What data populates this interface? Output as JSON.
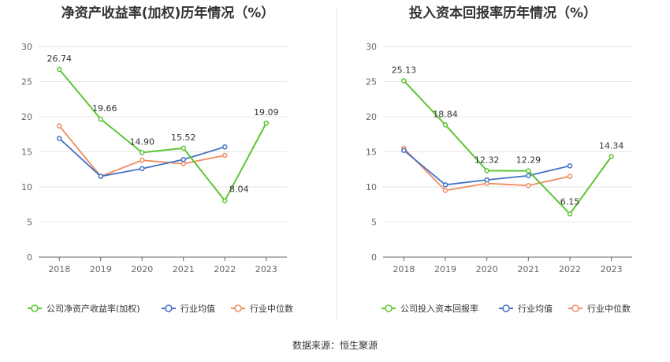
{
  "source_label": "数据来源：恒生聚源",
  "colors": {
    "company": "#5cc534",
    "avg": "#4472c4",
    "median": "#ef8c5f",
    "grid": "#e6e6e6",
    "axis": "#666666",
    "divider": "#e8e8e8"
  },
  "chart_data": [
    {
      "type": "line",
      "title": "净资产收益率(加权)历年情况（%）",
      "categories": [
        "2018",
        "2019",
        "2020",
        "2021",
        "2022",
        "2023"
      ],
      "ylim": [
        0,
        30
      ],
      "yticks": [
        0,
        5,
        10,
        15,
        20,
        25,
        30
      ],
      "grid": true,
      "legend_position": "bottom",
      "series": [
        {
          "name": "公司净资产收益率(加权)",
          "role": "company",
          "values": [
            26.74,
            19.66,
            14.9,
            15.52,
            8.04,
            19.09
          ],
          "labels": [
            "26.74",
            "19.66",
            "14.90",
            "15.52",
            "8.04",
            "19.09"
          ]
        },
        {
          "name": "行业均值",
          "role": "avg",
          "values": [
            16.9,
            11.5,
            12.6,
            13.9,
            15.7,
            null
          ]
        },
        {
          "name": "行业中位数",
          "role": "median",
          "values": [
            18.7,
            11.5,
            13.8,
            13.3,
            14.5,
            null
          ]
        }
      ]
    },
    {
      "type": "line",
      "title": "投入资本回报率历年情况（%）",
      "categories": [
        "2018",
        "2019",
        "2020",
        "2021",
        "2022",
        "2023"
      ],
      "ylim": [
        0,
        30
      ],
      "yticks": [
        0,
        5,
        10,
        15,
        20,
        25,
        30
      ],
      "grid": true,
      "legend_position": "bottom",
      "series": [
        {
          "name": "公司投入资本回报率",
          "role": "company",
          "values": [
            25.13,
            18.84,
            12.32,
            12.29,
            6.15,
            14.34
          ],
          "labels": [
            "25.13",
            "18.84",
            "12.32",
            "12.29",
            "6.15",
            "14.34"
          ]
        },
        {
          "name": "行业均值",
          "role": "avg",
          "values": [
            15.2,
            10.3,
            11.0,
            11.6,
            13.0,
            null
          ]
        },
        {
          "name": "行业中位数",
          "role": "median",
          "values": [
            15.5,
            9.5,
            10.5,
            10.2,
            11.5,
            null
          ]
        }
      ]
    }
  ]
}
